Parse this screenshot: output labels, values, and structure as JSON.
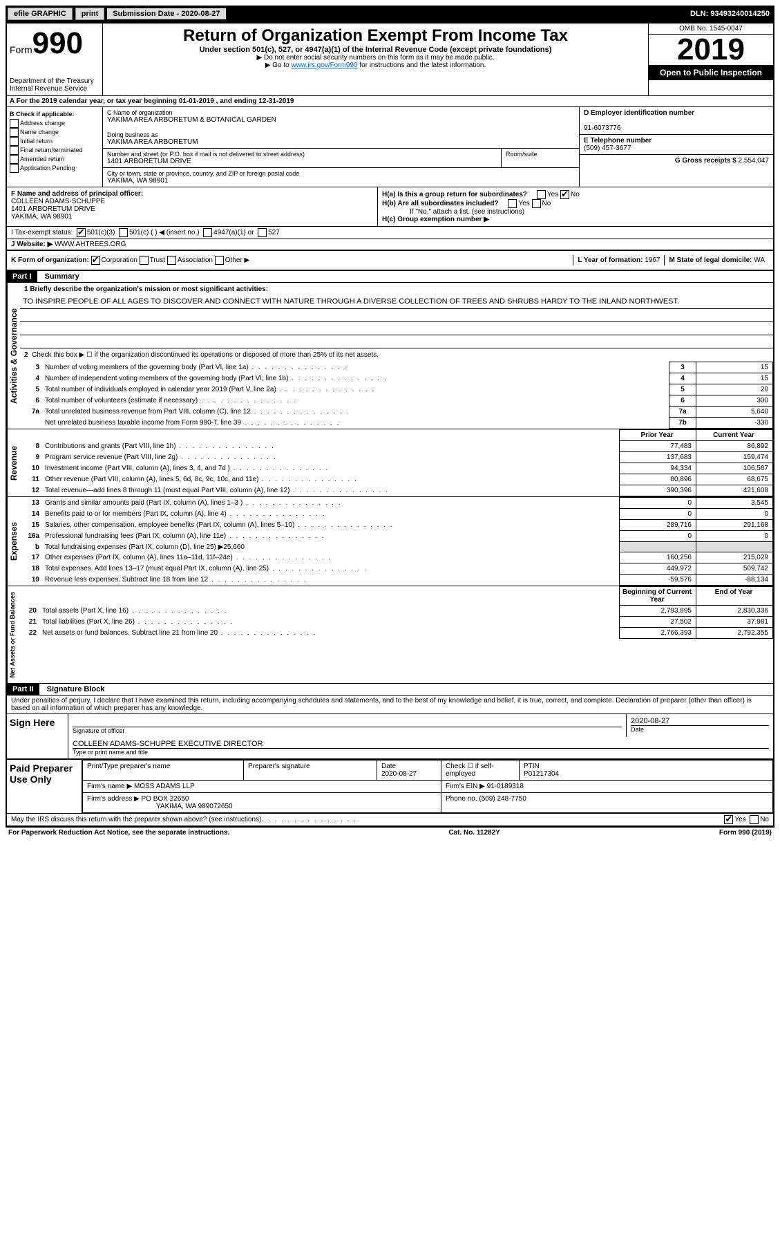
{
  "top_bar": {
    "efile": "efile GRAPHIC",
    "print": "print",
    "sub_label": "Submission Date - 2020-08-27",
    "dln": "DLN: 93493240014250"
  },
  "header": {
    "form_label": "Form",
    "form_num": "990",
    "dept": "Department of the Treasury",
    "irs": "Internal Revenue Service",
    "title": "Return of Organization Exempt From Income Tax",
    "subtitle": "Under section 501(c), 527, or 4947(a)(1) of the Internal Revenue Code (except private foundations)",
    "instr1": "▶ Do not enter social security numbers on this form as it may be made public.",
    "instr2_pre": "▶ Go to ",
    "instr2_link": "www.irs.gov/Form990",
    "instr2_post": " for instructions and the latest information.",
    "omb": "OMB No. 1545-0047",
    "year": "2019",
    "open": "Open to Public Inspection"
  },
  "line_a": "A For the 2019 calendar year, or tax year beginning 01-01-2019    , and ending 12-31-2019",
  "check_b": {
    "title": "B Check if applicable:",
    "items": [
      "Address change",
      "Name change",
      "Initial return",
      "Final return/terminated",
      "Amended return",
      "Application Pending"
    ]
  },
  "name_block": {
    "c_lbl": "C Name of organization",
    "c_val": "YAKIMA AREA ARBORETUM & BOTANICAL GARDEN",
    "dba_lbl": "Doing business as",
    "dba_val": "YAKIMA AREA ARBORETUM",
    "addr_lbl": "Number and street (or P.O. box if mail is not delivered to street address)",
    "addr_val": "1401 ARBORETUM DRIVE",
    "room_lbl": "Room/suite",
    "city_lbl": "City or town, state or province, country, and ZIP or foreign postal code",
    "city_val": "YAKIMA, WA  98901"
  },
  "right_info": {
    "d_lbl": "D Employer identification number",
    "d_val": "91-6073776",
    "e_lbl": "E Telephone number",
    "e_val": "(509) 457-3677",
    "g_lbl": "G Gross receipts $",
    "g_val": "2,554,047"
  },
  "principal": {
    "f_lbl": "F  Name and address of principal officer:",
    "f_name": "COLLEEN ADAMS-SCHUPPE",
    "f_addr": "1401 ARBORETUM DRIVE",
    "f_city": "YAKIMA, WA  98901",
    "ha": "H(a)  Is this a group return for subordinates?",
    "hb": "H(b)  Are all subordinates included?",
    "hb_note": "If \"No,\" attach a list. (see instructions)",
    "hc": "H(c)  Group exemption number ▶"
  },
  "status": {
    "i_lbl": "I   Tax-exempt status:",
    "opts": [
      "501(c)(3)",
      "501(c) (  ) ◀ (insert no.)",
      "4947(a)(1) or",
      "527"
    ],
    "j_lbl": "J  Website: ▶",
    "j_val": "WWW.AHTREES.ORG"
  },
  "form_org": {
    "k_lbl": "K Form of organization:",
    "opts": [
      "Corporation",
      "Trust",
      "Association",
      "Other ▶"
    ],
    "l_lbl": "L Year of formation:",
    "l_val": "1967",
    "m_lbl": "M State of legal domicile:",
    "m_val": "WA"
  },
  "part1": {
    "hdr": "Part I",
    "title": "Summary",
    "q1": "1  Briefly describe the organization's mission or most significant activities:",
    "mission": "TO INSPIRE PEOPLE OF ALL AGES TO DISCOVER AND CONNECT WITH NATURE THROUGH A DIVERSE COLLECTION OF TREES AND SHRUBS HARDY TO THE INLAND NORTHWEST.",
    "q2": "Check this box ▶ ☐  if the organization discontinued its operations or disposed of more than 25% of its net assets."
  },
  "governance": {
    "label": "Activities & Governance",
    "rows": [
      {
        "n": "3",
        "t": "Number of voting members of the governing body (Part VI, line 1a)",
        "box": "3",
        "v": "15"
      },
      {
        "n": "4",
        "t": "Number of independent voting members of the governing body (Part VI, line 1b)",
        "box": "4",
        "v": "15"
      },
      {
        "n": "5",
        "t": "Total number of individuals employed in calendar year 2019 (Part V, line 2a)",
        "box": "5",
        "v": "20"
      },
      {
        "n": "6",
        "t": "Total number of volunteers (estimate if necessary)",
        "box": "6",
        "v": "300"
      },
      {
        "n": "7a",
        "t": "Total unrelated business revenue from Part VIII, column (C), line 12",
        "box": "7a",
        "v": "5,640"
      },
      {
        "n": "",
        "t": "Net unrelated business taxable income from Form 990-T, line 39",
        "box": "7b",
        "v": "-330"
      }
    ]
  },
  "revenue": {
    "label": "Revenue",
    "hdr_prior": "Prior Year",
    "hdr_curr": "Current Year",
    "rows": [
      {
        "n": "8",
        "t": "Contributions and grants (Part VIII, line 1h)",
        "p": "77,483",
        "c": "86,892"
      },
      {
        "n": "9",
        "t": "Program service revenue (Part VIII, line 2g)",
        "p": "137,683",
        "c": "159,474"
      },
      {
        "n": "10",
        "t": "Investment income (Part VIII, column (A), lines 3, 4, and 7d )",
        "p": "94,334",
        "c": "106,567"
      },
      {
        "n": "11",
        "t": "Other revenue (Part VIII, column (A), lines 5, 6d, 8c, 9c, 10c, and 11e)",
        "p": "80,896",
        "c": "68,675"
      },
      {
        "n": "12",
        "t": "Total revenue—add lines 8 through 11 (must equal Part VIII, column (A), line 12)",
        "p": "390,396",
        "c": "421,608"
      }
    ]
  },
  "expenses": {
    "label": "Expenses",
    "rows": [
      {
        "n": "13",
        "t": "Grants and similar amounts paid (Part IX, column (A), lines 1–3 )",
        "p": "0",
        "c": "3,545"
      },
      {
        "n": "14",
        "t": "Benefits paid to or for members (Part IX, column (A), line 4)",
        "p": "0",
        "c": "0"
      },
      {
        "n": "15",
        "t": "Salaries, other compensation, employee benefits (Part IX, column (A), lines 5–10)",
        "p": "289,716",
        "c": "291,168"
      },
      {
        "n": "16a",
        "t": "Professional fundraising fees (Part IX, column (A), line 11e)",
        "p": "0",
        "c": "0"
      },
      {
        "n": "b",
        "t": "Total fundraising expenses (Part IX, column (D), line 25) ▶25,660",
        "p": "",
        "c": "",
        "shade": true
      },
      {
        "n": "17",
        "t": "Other expenses (Part IX, column (A), lines 11a–11d, 11f–24e)",
        "p": "160,256",
        "c": "215,029"
      },
      {
        "n": "18",
        "t": "Total expenses. Add lines 13–17 (must equal Part IX, column (A), line 25)",
        "p": "449,972",
        "c": "509,742"
      },
      {
        "n": "19",
        "t": "Revenue less expenses. Subtract line 18 from line 12",
        "p": "-59,576",
        "c": "-88,134"
      }
    ]
  },
  "netassets": {
    "label": "Net Assets or Fund Balances",
    "hdr_beg": "Beginning of Current Year",
    "hdr_end": "End of Year",
    "rows": [
      {
        "n": "20",
        "t": "Total assets (Part X, line 16)",
        "p": "2,793,895",
        "c": "2,830,336"
      },
      {
        "n": "21",
        "t": "Total liabilities (Part X, line 26)",
        "p": "27,502",
        "c": "37,981"
      },
      {
        "n": "22",
        "t": "Net assets or fund balances. Subtract line 21 from line 20",
        "p": "2,766,393",
        "c": "2,792,355"
      }
    ]
  },
  "part2": {
    "hdr": "Part II",
    "title": "Signature Block",
    "decl": "Under penalties of perjury, I declare that I have examined this return, including accompanying schedules and statements, and to the best of my knowledge and belief, it is true, correct, and complete. Declaration of preparer (other than officer) is based on all information of which preparer has any knowledge."
  },
  "sign": {
    "sign_here": "Sign Here",
    "sig_officer": "Signature of officer",
    "sig_date": "2020-08-27",
    "date_lbl": "Date",
    "name": "COLLEEN ADAMS-SCHUPPE  EXECUTIVE DIRECTOR",
    "name_lbl": "Type or print name and title"
  },
  "preparer": {
    "lbl": "Paid Preparer Use Only",
    "h1": "Print/Type preparer's name",
    "h2": "Preparer's signature",
    "h3": "Date",
    "h3v": "2020-08-27",
    "h4": "Check ☐ if self-employed",
    "h5": "PTIN",
    "h5v": "P01217304",
    "firm_lbl": "Firm's name     ▶",
    "firm": "MOSS ADAMS LLP",
    "ein_lbl": "Firm's EIN ▶",
    "ein": "91-0189318",
    "addr_lbl": "Firm's address ▶",
    "addr1": "PO BOX 22650",
    "addr2": "YAKIMA, WA  989072650",
    "phone_lbl": "Phone no.",
    "phone": "(509) 248-7750"
  },
  "discuss": "May the IRS discuss this return with the preparer shown above? (see instructions)",
  "footer": {
    "l": "For Paperwork Reduction Act Notice, see the separate instructions.",
    "m": "Cat. No. 11282Y",
    "r": "Form 990 (2019)"
  }
}
